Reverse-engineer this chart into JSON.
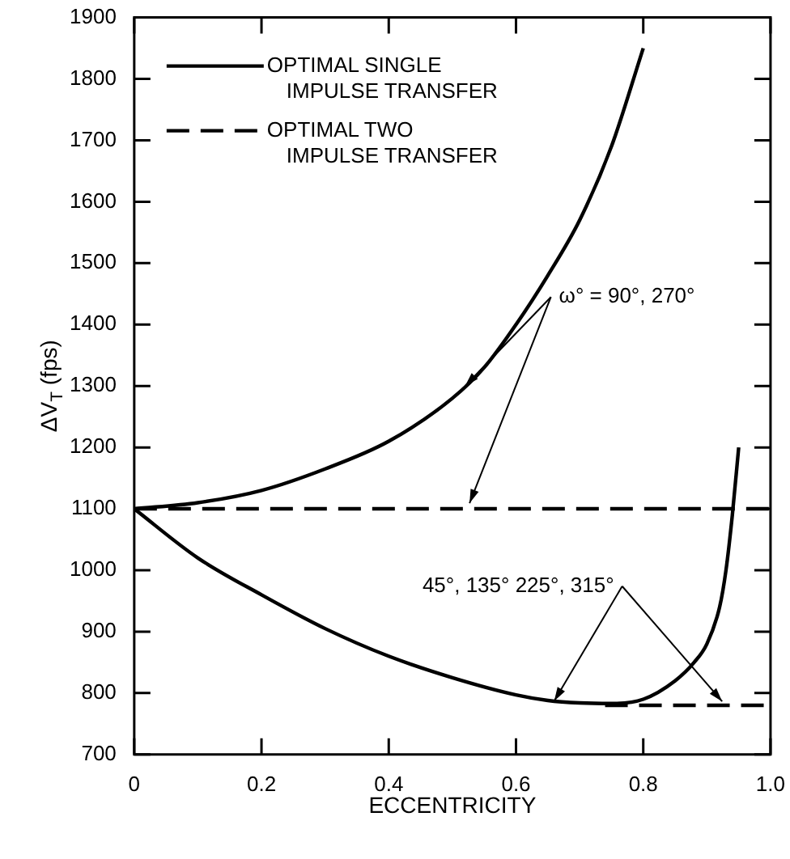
{
  "chart_data": {
    "type": "line",
    "xlabel": "ECCENTRICITY",
    "ylabel": "ΔV$_{T}$ (fps)",
    "xlim": [
      0,
      1.0
    ],
    "xticks": [
      0,
      0.2,
      0.4,
      0.6,
      0.8,
      {
        "value": 1.0,
        "label": "1.0"
      }
    ],
    "ylim": [
      700,
      1900
    ],
    "yticks": [
      700,
      800,
      900,
      1000,
      1100,
      1200,
      1300,
      1400,
      1500,
      1600,
      1700,
      1800,
      1900
    ],
    "grid": false,
    "legend": "top left",
    "marker": "none",
    "series": [
      {
        "name": "OPTIMAL SINGLE IMPULSE TRANSFER",
        "color": "#000000",
        "line_style": "solid",
        "x": [
          0,
          0.1,
          0.2,
          0.3,
          0.4,
          0.5,
          0.55,
          0.6,
          0.65,
          0.7,
          0.75,
          0.8
        ],
        "values": [
          1100,
          1110,
          1130,
          1165,
          1210,
          1280,
          1330,
          1400,
          1480,
          1570,
          1690,
          1850
        ]
      },
      {
        "color": "#000000",
        "line_style": "solid",
        "x": [
          0,
          0.1,
          0.2,
          0.3,
          0.4,
          0.5,
          0.6,
          0.65,
          0.7,
          0.75,
          0.8,
          0.85,
          0.88,
          0.9,
          0.92,
          0.93,
          0.94,
          0.95
        ],
        "values": [
          1100,
          1020,
          960,
          905,
          860,
          825,
          797,
          788,
          784,
          783,
          790,
          820,
          850,
          880,
          940,
          1000,
          1090,
          1200
        ]
      },
      {
        "name": "OPTIMAL TWO IMPULSE TRANSFER",
        "color": "#000000",
        "line_style": "dashed",
        "x": [
          0,
          1.0
        ],
        "values": [
          1100,
          1100
        ]
      },
      {
        "color": "#000000",
        "line_style": "dashed",
        "x": [
          0.74,
          1.0
        ],
        "values": [
          780,
          780
        ]
      }
    ],
    "annotations": [
      {
        "text": "ω° = 90°, 270°",
        "x": 0.52,
        "y": 1300
      },
      {
        "text": "45°, 135° 225°, 315°",
        "x": 0.66,
        "y": 787
      }
    ]
  }
}
